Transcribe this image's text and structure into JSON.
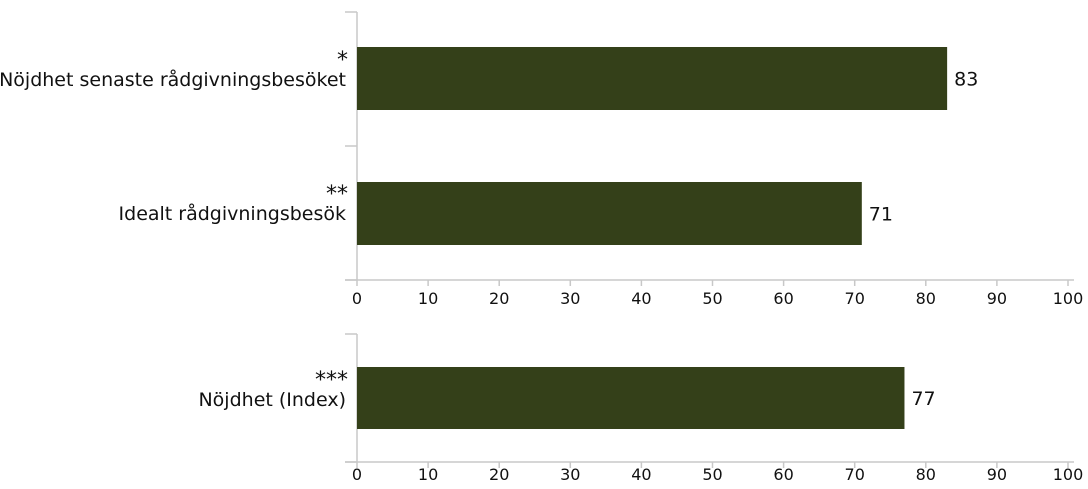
{
  "chart_data": [
    {
      "type": "bar",
      "orientation": "horizontal",
      "categories": [
        "Nöjdhet senaste rådgivningsbesöket",
        "Idealt rådgivningsbesök"
      ],
      "category_markers": [
        "*",
        "**"
      ],
      "values": [
        83,
        71
      ],
      "value_labels": [
        "83",
        "71"
      ],
      "xlim": [
        0,
        100
      ],
      "ticks": [
        0,
        10,
        20,
        30,
        40,
        50,
        60,
        70,
        80,
        90,
        100
      ],
      "tick_labels": [
        "0",
        "10",
        "20",
        "30",
        "40",
        "50",
        "60",
        "70",
        "80",
        "90",
        "100"
      ],
      "grid": false,
      "bar_color": "#344019"
    },
    {
      "type": "bar",
      "orientation": "horizontal",
      "categories": [
        "Nöjdhet (Index)"
      ],
      "category_markers": [
        "***"
      ],
      "values": [
        77
      ],
      "value_labels": [
        "77"
      ],
      "xlim": [
        0,
        100
      ],
      "ticks": [
        0,
        10,
        20,
        30,
        40,
        50,
        60,
        70,
        80,
        90,
        100
      ],
      "tick_labels": [
        "0",
        "10",
        "20",
        "30",
        "40",
        "50",
        "60",
        "70",
        "80",
        "90",
        "100"
      ],
      "grid": false,
      "bar_color": "#344019"
    }
  ],
  "colors": {
    "axis": "#c8c8c8",
    "text": "#111111"
  }
}
